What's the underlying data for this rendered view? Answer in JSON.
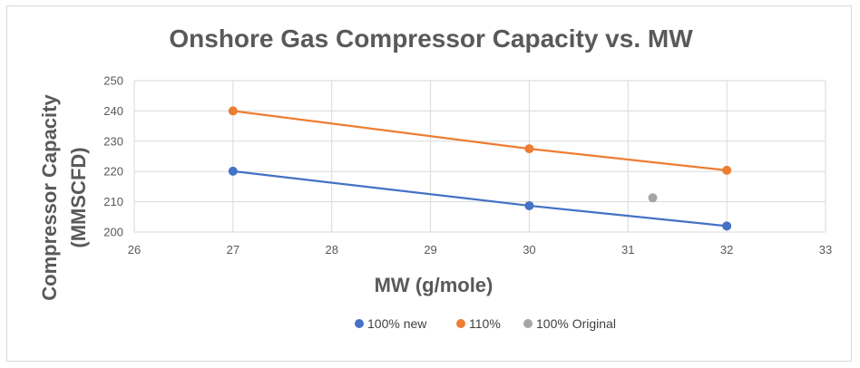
{
  "chart_data": {
    "type": "scatter",
    "title": "Onshore Gas Compressor Capacity vs. MW",
    "xlabel": "MW (g/mole)",
    "ylabel": [
      "Compressor Capacity",
      "(MMSCFD)"
    ],
    "xlim": [
      26,
      33
    ],
    "ylim": [
      200,
      250
    ],
    "x_ticks": [
      26,
      27,
      28,
      29,
      30,
      31,
      32,
      33
    ],
    "y_ticks": [
      200,
      210,
      220,
      230,
      240,
      250
    ],
    "grid": true,
    "legend_position": "bottom",
    "series": [
      {
        "name": "100% new",
        "color": "#4472c4",
        "line": true,
        "points": [
          [
            27,
            220.1
          ],
          [
            30,
            208.7
          ],
          [
            32,
            202
          ]
        ]
      },
      {
        "name": "110%",
        "color": "#ed7d31",
        "line": true,
        "points": [
          [
            27,
            240
          ],
          [
            30,
            227.5
          ],
          [
            32,
            220.4
          ]
        ]
      },
      {
        "name": "100% Original",
        "color": "#a5a5a5",
        "line": false,
        "points": [
          [
            31.25,
            211.3
          ]
        ]
      }
    ]
  }
}
